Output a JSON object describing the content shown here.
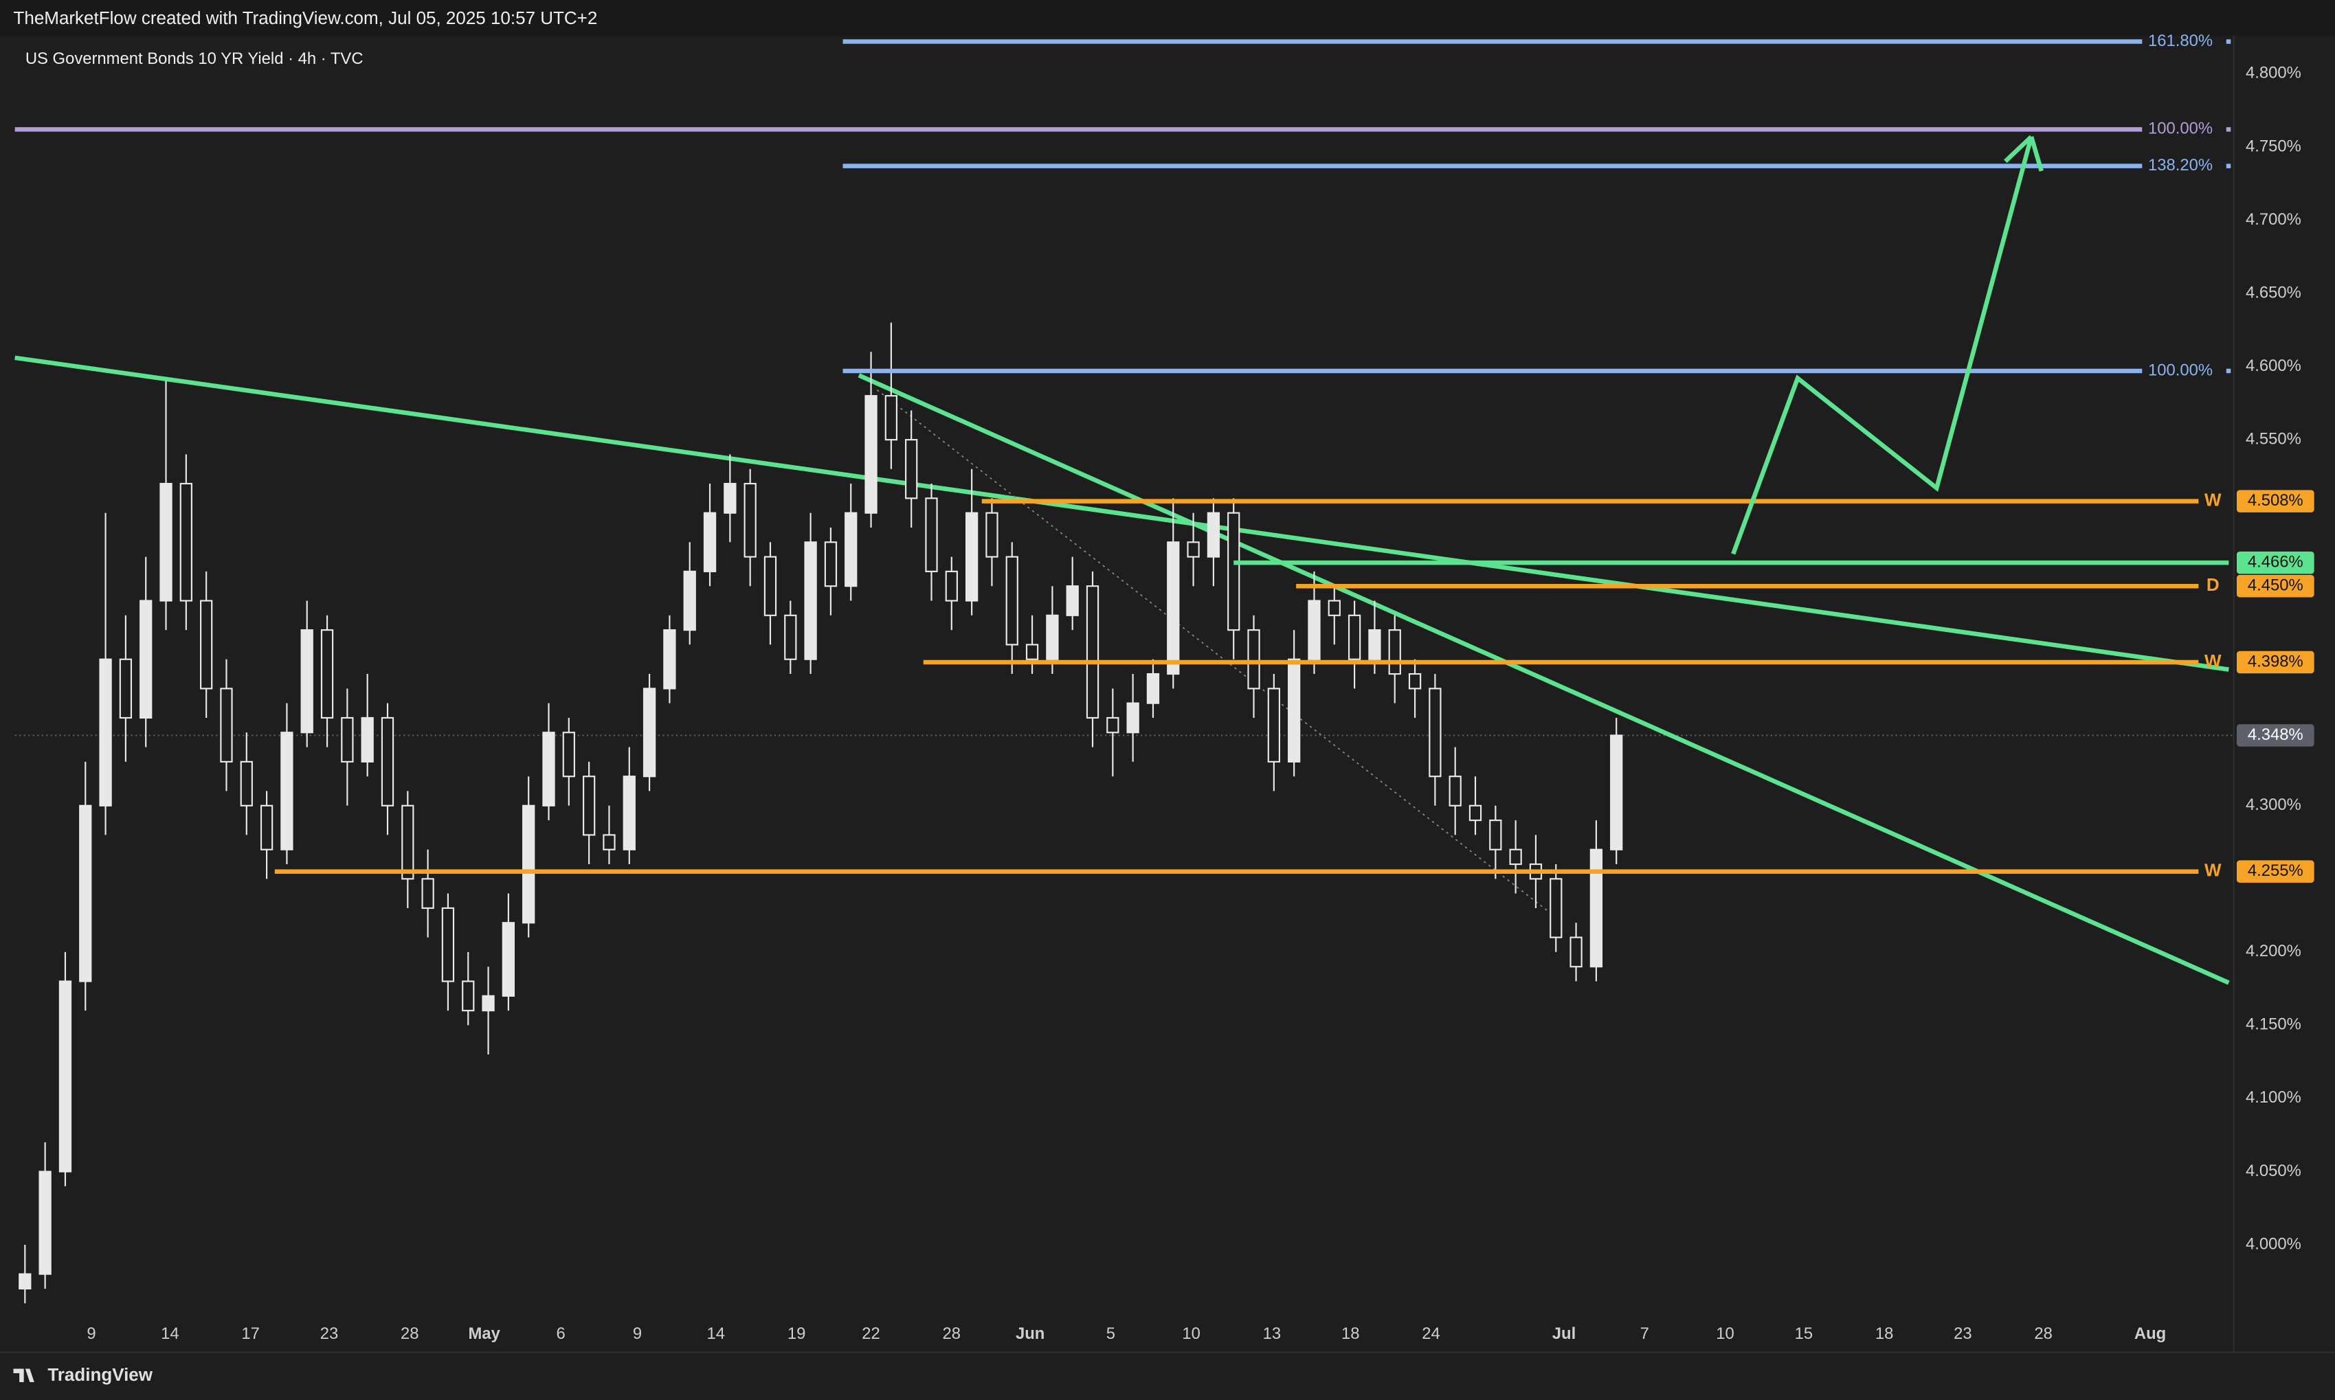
{
  "header": "TheMarketFlow created with TradingView.com, Jul 05, 2025 10:57 UTC+2",
  "footer": "TradingView",
  "chart_data": {
    "type": "candlestick",
    "title": "US Government Bonds 10 YR Yield · 4h · TVC",
    "color": "#e8e8e8",
    "down_fill": "#1e1e1e",
    "xlim": [
      -0.5,
      109.5
    ],
    "ylim": [
      3.955,
      4.826
    ],
    "xticks": [
      {
        "value": 3.3,
        "label": "9"
      },
      {
        "value": 7.2,
        "label": "14"
      },
      {
        "value": 11.2,
        "label": "17"
      },
      {
        "value": 15.1,
        "label": "23"
      },
      {
        "value": 19.1,
        "label": "28"
      },
      {
        "value": 22.8,
        "label": "May"
      },
      {
        "value": 26.6,
        "label": "6"
      },
      {
        "value": 30.4,
        "label": "9"
      },
      {
        "value": 34.3,
        "label": "14"
      },
      {
        "value": 38.3,
        "label": "19"
      },
      {
        "value": 42.0,
        "label": "22"
      },
      {
        "value": 46.0,
        "label": "28"
      },
      {
        "value": 49.9,
        "label": "Jun"
      },
      {
        "value": 53.9,
        "label": "5"
      },
      {
        "value": 57.9,
        "label": "10"
      },
      {
        "value": 61.9,
        "label": "13"
      },
      {
        "value": 65.8,
        "label": "18"
      },
      {
        "value": 69.8,
        "label": "24"
      },
      {
        "value": 76.4,
        "label": "Jul"
      },
      {
        "value": 80.4,
        "label": "7"
      },
      {
        "value": 84.4,
        "label": "10"
      },
      {
        "value": 88.3,
        "label": "15"
      },
      {
        "value": 92.3,
        "label": "18"
      },
      {
        "value": 96.2,
        "label": "23"
      },
      {
        "value": 100.2,
        "label": "28"
      },
      {
        "value": 105.5,
        "label": "Aug"
      }
    ],
    "yticks": [
      {
        "value": 4.8,
        "label": "4.800%"
      },
      {
        "value": 4.75,
        "label": "4.750%"
      },
      {
        "value": 4.7,
        "label": "4.700%"
      },
      {
        "value": 4.65,
        "label": "4.650%"
      },
      {
        "value": 4.6,
        "label": "4.600%"
      },
      {
        "value": 4.55,
        "label": "4.550%"
      },
      {
        "value": 4.3,
        "label": "4.300%"
      },
      {
        "value": 4.2,
        "label": "4.200%"
      },
      {
        "value": 4.15,
        "label": "4.150%"
      },
      {
        "value": 4.1,
        "label": "4.100%"
      },
      {
        "value": 4.05,
        "label": "4.050%"
      },
      {
        "value": 4.0,
        "label": "4.000%"
      }
    ],
    "candles": [
      [
        3.97,
        4.0,
        3.96,
        3.98
      ],
      [
        3.98,
        4.07,
        3.97,
        4.05
      ],
      [
        4.05,
        4.2,
        4.04,
        4.18
      ],
      [
        4.18,
        4.33,
        4.16,
        4.3
      ],
      [
        4.3,
        4.5,
        4.28,
        4.4
      ],
      [
        4.4,
        4.43,
        4.33,
        4.36
      ],
      [
        4.36,
        4.47,
        4.34,
        4.44
      ],
      [
        4.44,
        4.59,
        4.42,
        4.52
      ],
      [
        4.52,
        4.54,
        4.42,
        4.44
      ],
      [
        4.44,
        4.46,
        4.36,
        4.38
      ],
      [
        4.38,
        4.4,
        4.31,
        4.33
      ],
      [
        4.33,
        4.35,
        4.28,
        4.3
      ],
      [
        4.3,
        4.31,
        4.25,
        4.27
      ],
      [
        4.27,
        4.37,
        4.26,
        4.35
      ],
      [
        4.35,
        4.44,
        4.34,
        4.42
      ],
      [
        4.42,
        4.43,
        4.34,
        4.36
      ],
      [
        4.36,
        4.38,
        4.3,
        4.33
      ],
      [
        4.33,
        4.39,
        4.32,
        4.36
      ],
      [
        4.36,
        4.37,
        4.28,
        4.3
      ],
      [
        4.3,
        4.31,
        4.23,
        4.25
      ],
      [
        4.25,
        4.27,
        4.21,
        4.23
      ],
      [
        4.23,
        4.24,
        4.16,
        4.18
      ],
      [
        4.18,
        4.2,
        4.15,
        4.16
      ],
      [
        4.16,
        4.19,
        4.13,
        4.17
      ],
      [
        4.17,
        4.24,
        4.16,
        4.22
      ],
      [
        4.22,
        4.32,
        4.21,
        4.3
      ],
      [
        4.3,
        4.37,
        4.29,
        4.35
      ],
      [
        4.35,
        4.36,
        4.3,
        4.32
      ],
      [
        4.32,
        4.33,
        4.26,
        4.28
      ],
      [
        4.28,
        4.3,
        4.26,
        4.27
      ],
      [
        4.27,
        4.34,
        4.26,
        4.32
      ],
      [
        4.32,
        4.39,
        4.31,
        4.38
      ],
      [
        4.38,
        4.43,
        4.37,
        4.42
      ],
      [
        4.42,
        4.48,
        4.41,
        4.46
      ],
      [
        4.46,
        4.52,
        4.45,
        4.5
      ],
      [
        4.5,
        4.54,
        4.48,
        4.52
      ],
      [
        4.52,
        4.53,
        4.45,
        4.47
      ],
      [
        4.47,
        4.48,
        4.41,
        4.43
      ],
      [
        4.43,
        4.44,
        4.39,
        4.4
      ],
      [
        4.4,
        4.5,
        4.39,
        4.48
      ],
      [
        4.48,
        4.49,
        4.43,
        4.45
      ],
      [
        4.45,
        4.52,
        4.44,
        4.5
      ],
      [
        4.5,
        4.61,
        4.49,
        4.58
      ],
      [
        4.58,
        4.63,
        4.53,
        4.55
      ],
      [
        4.55,
        4.57,
        4.49,
        4.51
      ],
      [
        4.51,
        4.52,
        4.44,
        4.46
      ],
      [
        4.46,
        4.47,
        4.42,
        4.44
      ],
      [
        4.44,
        4.53,
        4.43,
        4.5
      ],
      [
        4.5,
        4.51,
        4.45,
        4.47
      ],
      [
        4.47,
        4.48,
        4.39,
        4.41
      ],
      [
        4.41,
        4.43,
        4.39,
        4.4
      ],
      [
        4.4,
        4.45,
        4.39,
        4.43
      ],
      [
        4.43,
        4.47,
        4.42,
        4.45
      ],
      [
        4.45,
        4.46,
        4.34,
        4.36
      ],
      [
        4.36,
        4.38,
        4.32,
        4.35
      ],
      [
        4.35,
        4.39,
        4.33,
        4.37
      ],
      [
        4.37,
        4.4,
        4.36,
        4.39
      ],
      [
        4.39,
        4.51,
        4.38,
        4.48
      ],
      [
        4.48,
        4.5,
        4.45,
        4.47
      ],
      [
        4.47,
        4.51,
        4.45,
        4.5
      ],
      [
        4.5,
        4.51,
        4.4,
        4.42
      ],
      [
        4.42,
        4.43,
        4.36,
        4.38
      ],
      [
        4.38,
        4.39,
        4.31,
        4.33
      ],
      [
        4.33,
        4.42,
        4.32,
        4.4
      ],
      [
        4.4,
        4.46,
        4.39,
        4.44
      ],
      [
        4.44,
        4.45,
        4.41,
        4.43
      ],
      [
        4.43,
        4.44,
        4.38,
        4.4
      ],
      [
        4.4,
        4.44,
        4.39,
        4.42
      ],
      [
        4.42,
        4.43,
        4.37,
        4.39
      ],
      [
        4.39,
        4.4,
        4.36,
        4.38
      ],
      [
        4.38,
        4.39,
        4.3,
        4.32
      ],
      [
        4.32,
        4.34,
        4.28,
        4.3
      ],
      [
        4.3,
        4.32,
        4.28,
        4.29
      ],
      [
        4.29,
        4.3,
        4.25,
        4.27
      ],
      [
        4.27,
        4.29,
        4.24,
        4.26
      ],
      [
        4.26,
        4.28,
        4.23,
        4.25
      ],
      [
        4.25,
        4.26,
        4.2,
        4.21
      ],
      [
        4.21,
        4.22,
        4.18,
        4.19
      ],
      [
        4.19,
        4.29,
        4.18,
        4.27
      ],
      [
        4.27,
        4.36,
        4.26,
        4.348
      ]
    ],
    "last_price": {
      "value": 4.348,
      "label": "4.348%",
      "color": "#5d606b"
    },
    "levels": [
      {
        "value": 4.508,
        "label": "4.508%",
        "tag": "W",
        "color": "#f7a325",
        "from": 47.5,
        "to": 107.9
      },
      {
        "value": 4.45,
        "label": "4.450%",
        "tag": "D",
        "color": "#f7a325",
        "from": 63.1,
        "to": 107.9
      },
      {
        "value": 4.398,
        "label": "4.398%",
        "tag": "W",
        "color": "#f7a325",
        "from": 44.6,
        "to": 107.9
      },
      {
        "value": 4.255,
        "label": "4.255%",
        "tag": "W",
        "color": "#f7a325",
        "from": 12.4,
        "to": 107.9
      },
      {
        "value": 4.466,
        "label": "4.466%",
        "color": "#5be38f",
        "from": 60.0,
        "to": 109.4
      }
    ],
    "fib": [
      {
        "value": 4.822,
        "label": "161.80%",
        "color": "#8ab4f0",
        "from": 40.6,
        "to": 105.1
      },
      {
        "value": 4.762,
        "label": "100.00%",
        "color": "#b39ddb",
        "from": -0.5,
        "to": 105.1
      },
      {
        "value": 4.737,
        "label": "138.20%",
        "color": "#8ab4f0",
        "from": 40.6,
        "to": 105.1
      },
      {
        "value": 4.597,
        "label": "100.00%",
        "color": "#8ab4f0",
        "from": 40.6,
        "to": 105.1
      }
    ],
    "trendlines": [
      {
        "x": [
          -0.5,
          109.4
        ],
        "y": [
          4.606,
          4.393
        ],
        "color": "#5be38f"
      },
      {
        "x": [
          41.4,
          109.4
        ],
        "y": [
          4.594,
          4.179
        ],
        "color": "#5be38f"
      },
      {
        "x": [
          42.3,
          75.6
        ],
        "y": [
          4.584,
          4.228
        ],
        "color": "#8a8a8a",
        "dotted": true
      }
    ],
    "projection": {
      "x": [
        84.8,
        88.0,
        94.9,
        99.6
      ],
      "y": [
        4.472,
        4.592,
        4.517,
        4.757
      ],
      "color": "#5be38f"
    }
  }
}
